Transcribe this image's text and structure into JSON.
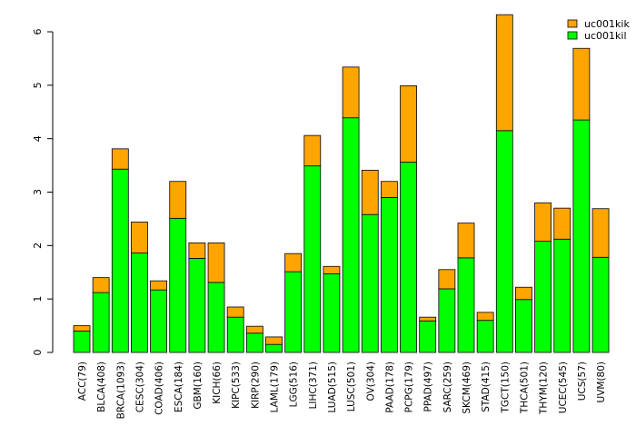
{
  "chart_data": {
    "type": "bar",
    "stacked": true,
    "categories": [
      "ACC(79)",
      "BLCA(408)",
      "BRCA(1093)",
      "CESC(304)",
      "COAD(406)",
      "ESCA(184)",
      "GBM(160)",
      "KICH(66)",
      "KIPC(533)",
      "KIRP(290)",
      "LAML(179)",
      "LGG(516)",
      "LIHC(371)",
      "LUAD(515)",
      "LUSC(501)",
      "OV(304)",
      "PAAD(178)",
      "PCPG(179)",
      "PPAD(497)",
      "SARC(259)",
      "SKCM(469)",
      "STAD(415)",
      "TGCT(150)",
      "THCA(501)",
      "THYM(120)",
      "UCEC(545)",
      "UCS(57)",
      "UVM(80)"
    ],
    "series": [
      {
        "name": "uc001kil",
        "color": "#00ff00",
        "values": [
          0.4,
          1.12,
          3.43,
          1.86,
          1.17,
          2.51,
          1.76,
          1.31,
          0.66,
          0.36,
          0.15,
          1.51,
          3.49,
          1.47,
          4.39,
          2.58,
          2.9,
          3.56,
          0.59,
          1.19,
          1.77,
          0.6,
          4.15,
          0.99,
          2.08,
          2.12,
          4.35,
          1.78
        ]
      },
      {
        "name": "uc001kik",
        "color": "#ffa500",
        "values": [
          0.1,
          0.28,
          0.38,
          0.58,
          0.17,
          0.69,
          0.29,
          0.74,
          0.19,
          0.13,
          0.14,
          0.34,
          0.57,
          0.14,
          0.95,
          0.83,
          0.3,
          1.43,
          0.07,
          0.36,
          0.65,
          0.15,
          2.17,
          0.23,
          0.72,
          0.58,
          1.34,
          0.91
        ]
      }
    ],
    "ylim": [
      0,
      6
    ],
    "yticks": [
      0,
      1,
      2,
      3,
      4,
      5,
      6
    ],
    "ytick_labels": [
      "0",
      "1",
      "2",
      "3",
      "4",
      "5",
      "6"
    ],
    "legend_position": "top-right",
    "legend_order": [
      "uc001kik",
      "uc001kil"
    ],
    "grid": false
  }
}
